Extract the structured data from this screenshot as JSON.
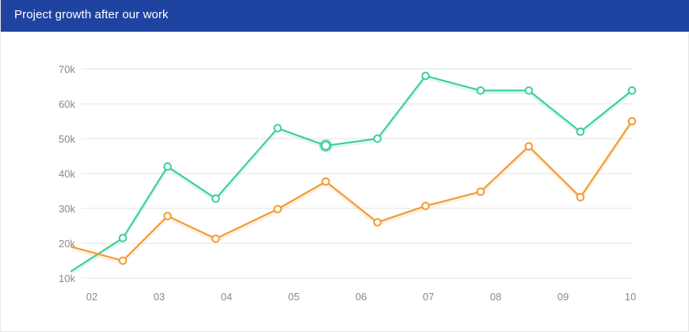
{
  "header": {
    "title": "Project growth after our work"
  },
  "colors": {
    "header_bg": "#1f43a0",
    "series_green": "#3ecf9a",
    "series_orange": "#f39a33",
    "grid": "#e3e3e3",
    "tick_text": "#8a8a8a"
  },
  "chart_data": {
    "type": "line",
    "title": "",
    "xlabel": "",
    "ylabel": "",
    "ylim": [
      10000,
      70000
    ],
    "xlim": [
      2,
      10
    ],
    "y_ticks": [
      10000,
      20000,
      30000,
      40000,
      50000,
      60000,
      70000
    ],
    "y_tick_labels": [
      "10k",
      "20k",
      "30k",
      "40k",
      "50k",
      "60k",
      "70k"
    ],
    "x_ticks": [
      2,
      3,
      4,
      5,
      6,
      7,
      8,
      9,
      10
    ],
    "x_tick_labels": [
      "02",
      "03",
      "04",
      "05",
      "06",
      "07",
      "08",
      "09",
      "10"
    ],
    "grid": true,
    "legend": "none",
    "series": [
      {
        "color": "#3ecf9a",
        "x": [
          1.85,
          2.6,
          3.25,
          3.95,
          4.85,
          5.55,
          6.3,
          7.0,
          7.8,
          8.5,
          9.25,
          10.0
        ],
        "y": [
          12000,
          21500,
          42000,
          32800,
          53000,
          48000,
          50000,
          68000,
          63800,
          63800,
          52000,
          63800
        ],
        "highlight_index": 5
      },
      {
        "color": "#f39a33",
        "x": [
          1.85,
          2.6,
          3.25,
          3.95,
          4.85,
          5.55,
          6.3,
          7.0,
          7.8,
          8.5,
          9.25,
          10.0
        ],
        "y": [
          19000,
          15000,
          27800,
          21300,
          29800,
          37700,
          26000,
          30700,
          34800,
          47800,
          33200,
          55000
        ]
      }
    ]
  }
}
